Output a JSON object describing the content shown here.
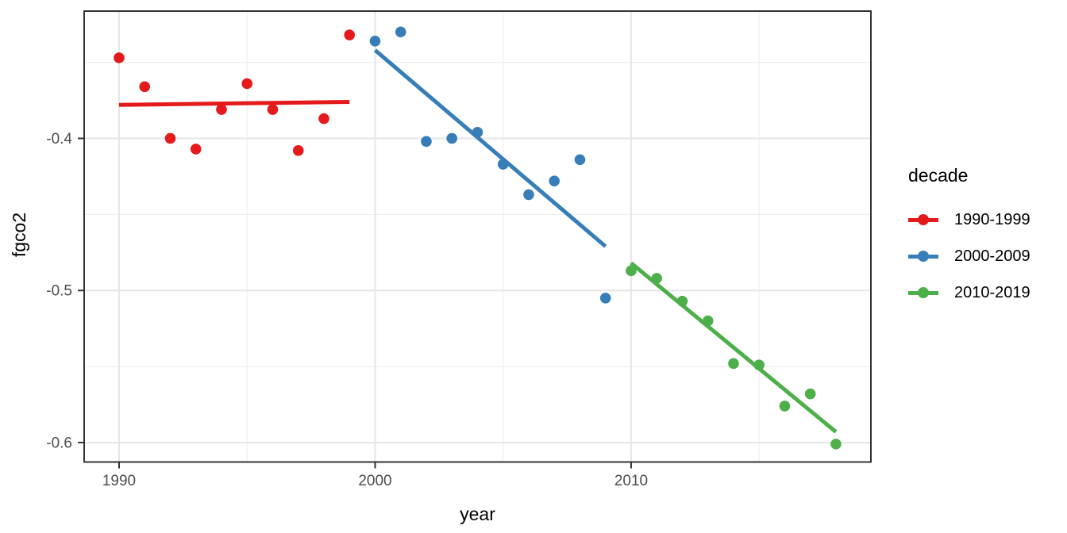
{
  "chart_data": {
    "type": "scatter",
    "title": "",
    "xlabel": "year",
    "ylabel": "fgco2",
    "legend_title": "decade",
    "legend_position": "right",
    "grid": true,
    "xlim": [
      1988.636,
      2019.366
    ],
    "ylim": [
      -0.6128,
      -0.3163
    ],
    "x_major_ticks": [
      1990,
      2000,
      2010
    ],
    "x_tick_labels": [
      "1990",
      "2000",
      "2010"
    ],
    "x_minor_ticks": [
      1995,
      2005,
      2015
    ],
    "y_major_ticks": [
      -0.4,
      -0.5,
      -0.6
    ],
    "y_tick_labels": [
      "-0.4",
      "-0.5",
      "-0.6"
    ],
    "y_minor_ticks": [
      -0.35,
      -0.45,
      -0.55
    ],
    "colors": {
      "grid_major": "#e6e6e6",
      "grid_minor": "#ececec",
      "panel_border": "#333333",
      "tick_mark": "#333333",
      "tick_label": "#4d4d4d",
      "axis_title": "#000000",
      "background": "#ffffff"
    },
    "series": [
      {
        "name": "1990-1999",
        "color": "#e41a1c",
        "x": [
          1990,
          1991,
          1992,
          1993,
          1994,
          1995,
          1996,
          1997,
          1998,
          1999
        ],
        "y": [
          -0.347,
          -0.366,
          -0.4,
          -0.407,
          -0.381,
          -0.364,
          -0.381,
          -0.408,
          -0.387,
          -0.332
        ],
        "trend": {
          "x": [
            1990,
            1999
          ],
          "y": [
            -0.378,
            -0.376
          ]
        }
      },
      {
        "name": "2000-2009",
        "color": "#377eb8",
        "x": [
          2000,
          2001,
          2002,
          2003,
          2004,
          2005,
          2006,
          2007,
          2008,
          2009
        ],
        "y": [
          -0.336,
          -0.33,
          -0.402,
          -0.4,
          -0.396,
          -0.417,
          -0.437,
          -0.428,
          -0.414,
          -0.505
        ],
        "trend": {
          "x": [
            2000,
            2009
          ],
          "y": [
            -0.342,
            -0.471
          ]
        }
      },
      {
        "name": "2010-2019",
        "color": "#4daf4a",
        "x": [
          2010,
          2011,
          2012,
          2013,
          2014,
          2015,
          2016,
          2017,
          2018
        ],
        "y": [
          -0.487,
          -0.492,
          -0.507,
          -0.52,
          -0.548,
          -0.549,
          -0.576,
          -0.568,
          -0.601
        ],
        "trend": {
          "x": [
            2010,
            2018
          ],
          "y": [
            -0.482,
            -0.593
          ]
        }
      }
    ]
  }
}
